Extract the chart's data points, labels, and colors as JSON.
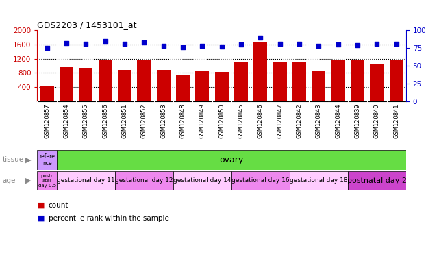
{
  "title": "GDS2203 / 1453101_at",
  "samples": [
    "GSM120857",
    "GSM120854",
    "GSM120855",
    "GSM120856",
    "GSM120851",
    "GSM120852",
    "GSM120853",
    "GSM120848",
    "GSM120849",
    "GSM120850",
    "GSM120845",
    "GSM120846",
    "GSM120847",
    "GSM120842",
    "GSM120843",
    "GSM120844",
    "GSM120839",
    "GSM120840",
    "GSM120841"
  ],
  "counts": [
    430,
    960,
    940,
    1170,
    890,
    1175,
    880,
    740,
    870,
    830,
    1110,
    1660,
    1120,
    1115,
    870,
    1175,
    1165,
    1040,
    1155
  ],
  "percentiles": [
    75,
    82,
    81,
    85,
    81,
    83,
    78,
    76,
    78,
    77,
    80,
    90,
    81,
    81,
    78,
    80,
    79,
    81,
    81
  ],
  "ylim_left": [
    0,
    2000
  ],
  "ylim_right": [
    0,
    100
  ],
  "yticks_left": [
    400,
    800,
    1200,
    1600,
    2000
  ],
  "yticks_right": [
    0,
    25,
    50,
    75,
    100
  ],
  "bar_color": "#cc0000",
  "dot_color": "#0000cc",
  "bg_color": "#ffffff",
  "xtick_bg_color": "#d0d0d0",
  "tissue_ref_color": "#cc99ff",
  "tissue_ovary_color": "#66dd44",
  "age_groups": [
    {
      "label": "postn\natal\nday 0.5",
      "color": "#ee88ee",
      "span": 1
    },
    {
      "label": "gestational day 11",
      "color": "#ffccff",
      "span": 3
    },
    {
      "label": "gestational day 12",
      "color": "#ee88ee",
      "span": 3
    },
    {
      "label": "gestational day 14",
      "color": "#ffccff",
      "span": 3
    },
    {
      "label": "gestational day 16",
      "color": "#ee88ee",
      "span": 3
    },
    {
      "label": "gestational day 18",
      "color": "#ffccff",
      "span": 3
    },
    {
      "label": "postnatal day 2",
      "color": "#cc44cc",
      "span": 3
    }
  ],
  "tissue_label": "tissue",
  "age_label": "age",
  "legend_count_color": "#cc0000",
  "legend_dot_color": "#0000cc"
}
